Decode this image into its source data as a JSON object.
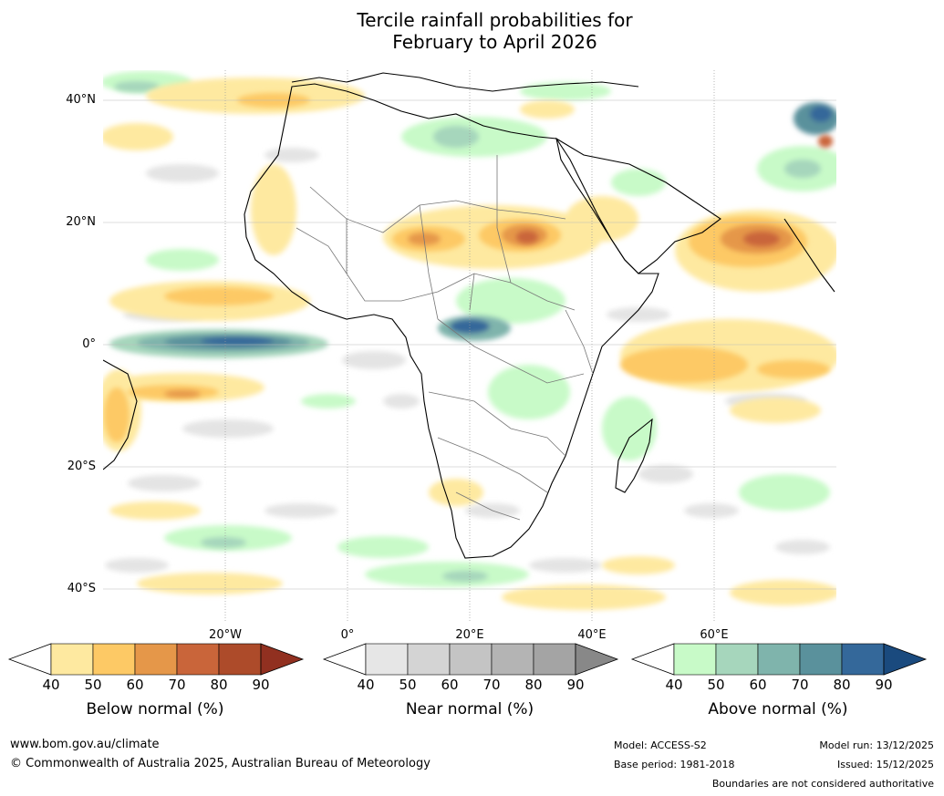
{
  "title": {
    "line1": "Tercile rainfall probabilities for",
    "line2": "February to April 2026"
  },
  "map": {
    "latitude_labels": [
      "40°N",
      "20°N",
      "0°",
      "20°S",
      "40°S"
    ],
    "longitude_labels": [
      "20°W",
      "0°",
      "20°E",
      "40°E",
      "60°E"
    ]
  },
  "colorbars": [
    {
      "name": "below",
      "title": "Below normal (%)",
      "ticks": [
        "40",
        "50",
        "60",
        "70",
        "80",
        "90"
      ],
      "colors": [
        "#ffffff",
        "#fee9a0",
        "#fdc965",
        "#e59749",
        "#c9653a",
        "#ad4b2a",
        "#913020"
      ]
    },
    {
      "name": "near",
      "title": "Near normal (%)",
      "ticks": [
        "40",
        "50",
        "60",
        "70",
        "80",
        "90"
      ],
      "colors": [
        "#ffffff",
        "#e6e6e6",
        "#d4d4d4",
        "#c4c4c4",
        "#b4b4b4",
        "#a4a4a4",
        "#888888"
      ]
    },
    {
      "name": "above",
      "title": "Above normal (%)",
      "ticks": [
        "40",
        "50",
        "60",
        "70",
        "80",
        "90"
      ],
      "colors": [
        "#ffffff",
        "#c8fac8",
        "#a6d6bc",
        "#7fb4ac",
        "#5a919c",
        "#34689a",
        "#1a4a7e"
      ]
    }
  ],
  "footer": {
    "website": "www.bom.gov.au/climate",
    "copyright": "© Commonwealth of Australia 2025, Australian Bureau of Meteorology",
    "model": "Model: ACCESS-S2",
    "base_period": "Base period: 1981-2018",
    "model_run": "Model run: 13/12/2025",
    "issued": "Issued: 15/12/2025",
    "disclaimer": "Boundaries are not considered authoritative"
  }
}
